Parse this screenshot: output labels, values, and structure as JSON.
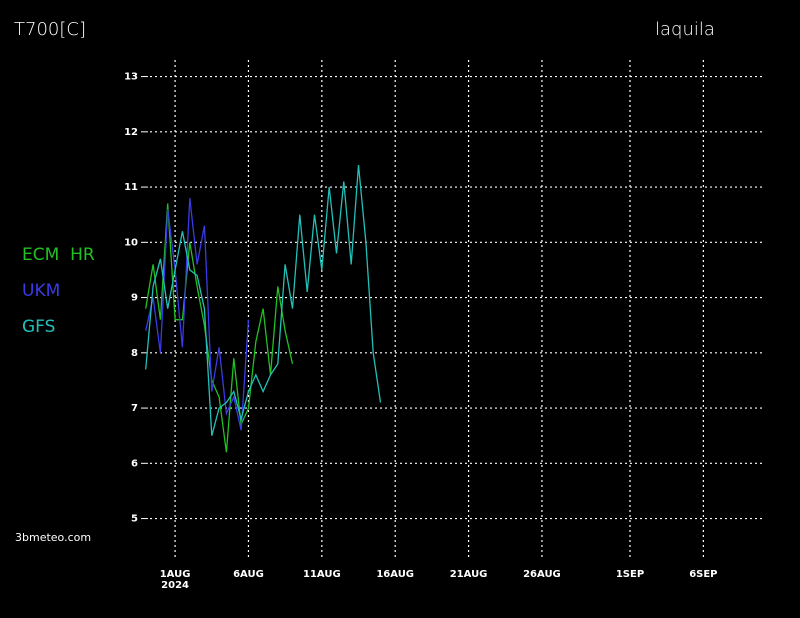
{
  "chart_data": {
    "type": "line",
    "title": "T700[C]",
    "location": "laquila",
    "credit": "3bmeteo.com",
    "year": "2024",
    "x": [
      -1,
      -0.5,
      0,
      0.5,
      1,
      1.5,
      2,
      2.5,
      3,
      3.5,
      4,
      4.5,
      5,
      5.5,
      6,
      6.5,
      7,
      7.5,
      8,
      8.5,
      9,
      9.5,
      10,
      10.5,
      11,
      11.5,
      12,
      12.5,
      13,
      13.5,
      14,
      14.5,
      15
    ],
    "series": [
      {
        "name": "ECM  HR",
        "color": "#22c022",
        "values": [
          8.8,
          9.6,
          8.6,
          10.7,
          8.6,
          8.6,
          10.0,
          9.2,
          8.5,
          7.5,
          7.2,
          6.2,
          7.9,
          6.7,
          7.0,
          8.2,
          8.8,
          7.6,
          9.2,
          8.4,
          7.8,
          null,
          null,
          null,
          null,
          null,
          null,
          null,
          null,
          null,
          null,
          null,
          null
        ]
      },
      {
        "name": "UKM",
        "color": "#3a3ae6",
        "values": [
          8.4,
          9.0,
          8.0,
          10.6,
          9.5,
          8.1,
          10.8,
          9.6,
          10.3,
          7.3,
          8.1,
          6.9,
          7.2,
          6.6,
          8.6,
          null,
          null,
          null,
          null,
          null,
          null,
          null,
          null,
          null,
          null,
          null,
          null,
          null,
          null,
          null,
          null,
          null,
          null
        ]
      },
      {
        "name": "GFS",
        "color": "#22c0b8",
        "values": [
          7.7,
          9.2,
          9.7,
          8.8,
          9.5,
          10.2,
          9.5,
          9.4,
          8.8,
          6.5,
          7.0,
          7.1,
          7.3,
          6.8,
          7.3,
          7.6,
          7.3,
          7.6,
          7.8,
          9.6,
          8.8,
          10.5,
          9.1,
          10.5,
          9.5,
          11.0,
          9.8,
          11.1,
          9.6,
          11.4,
          10.0,
          8.0,
          7.1
        ]
      }
    ],
    "xlim": [
      -1.05,
      41.2
    ],
    "xticks": [
      {
        "value": 1,
        "label": "1AUG"
      },
      {
        "value": 6,
        "label": "6AUG"
      },
      {
        "value": 11,
        "label": "11AUG"
      },
      {
        "value": 16,
        "label": "16AUG"
      },
      {
        "value": 21,
        "label": "21AUG"
      },
      {
        "value": 26,
        "label": "26AUG"
      },
      {
        "value": 32,
        "label": "1SEP"
      },
      {
        "value": 37,
        "label": "6SEP"
      }
    ],
    "ylim": [
      4.25,
      13.3
    ],
    "yticks": [
      5,
      6,
      7,
      8,
      9,
      10,
      11,
      12,
      13
    ],
    "grid": true,
    "legend": "left"
  }
}
